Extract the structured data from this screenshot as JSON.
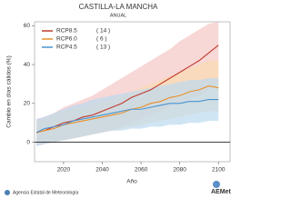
{
  "chart_data": {
    "type": "line",
    "title": "CASTILLA-LA MANCHA",
    "subtitle": "ANUAL",
    "y_label": "Cambio en días cálidos (%)",
    "x_label": "Año",
    "x": [
      2006,
      2010,
      2015,
      2020,
      2025,
      2030,
      2035,
      2040,
      2045,
      2050,
      2055,
      2060,
      2065,
      2070,
      2075,
      2080,
      2085,
      2090,
      2095,
      2100
    ],
    "xlim": [
      2005,
      2106
    ],
    "xticks": [
      2020,
      2040,
      2060,
      2080,
      2100
    ],
    "ylim": [
      -10,
      62
    ],
    "yticks": [
      0,
      20,
      40,
      60
    ],
    "series": [
      {
        "name": "RCP8.5",
        "count_label": "( 14 )",
        "color": "#c0392b",
        "band_color": "#f5c6c6",
        "values": [
          5,
          6,
          8,
          10,
          11,
          13,
          14,
          16,
          18,
          20,
          23,
          25,
          27,
          30,
          33,
          36,
          39,
          42,
          46,
          50
        ],
        "band_low": [
          -2,
          -1,
          0,
          1,
          2,
          3,
          4,
          5,
          6,
          8,
          10,
          12,
          14,
          16,
          18,
          20,
          22,
          24,
          27,
          30
        ],
        "band_high": [
          12,
          13,
          15,
          18,
          20,
          22,
          24,
          27,
          30,
          33,
          36,
          39,
          42,
          45,
          48,
          52,
          55,
          58,
          61,
          62
        ]
      },
      {
        "name": "RCP6.0",
        "count_label": "( 6 )",
        "color": "#e8902a",
        "band_color": "#fbdcb0",
        "values": [
          5,
          6,
          7,
          9,
          10,
          11,
          12,
          13,
          14,
          15,
          17,
          18,
          20,
          21,
          23,
          24,
          26,
          27,
          29,
          28
        ],
        "band_low": [
          -1,
          0,
          0,
          1,
          2,
          3,
          4,
          5,
          6,
          7,
          8,
          9,
          10,
          11,
          12,
          13,
          14,
          15,
          16,
          16
        ],
        "band_high": [
          11,
          12,
          14,
          16,
          17,
          18,
          19,
          21,
          22,
          24,
          26,
          28,
          30,
          32,
          34,
          36,
          38,
          40,
          42,
          42
        ]
      },
      {
        "name": "RCP4.5",
        "count_label": "( 13 )",
        "color": "#4a94d0",
        "band_color": "#bcdaf0",
        "values": [
          5,
          7,
          8,
          9,
          11,
          12,
          13,
          14,
          15,
          16,
          17,
          17,
          18,
          19,
          20,
          20,
          21,
          21,
          22,
          22
        ],
        "band_low": [
          -2,
          -1,
          0,
          1,
          2,
          3,
          4,
          5,
          6,
          6,
          7,
          7,
          8,
          8,
          9,
          9,
          10,
          10,
          11,
          11
        ],
        "band_high": [
          12,
          13,
          15,
          17,
          19,
          20,
          22,
          23,
          24,
          25,
          26,
          27,
          28,
          29,
          30,
          31,
          32,
          32,
          33,
          33
        ]
      }
    ],
    "footer": "Agencia Estatal de Meteorología",
    "logo": "AEMet"
  }
}
